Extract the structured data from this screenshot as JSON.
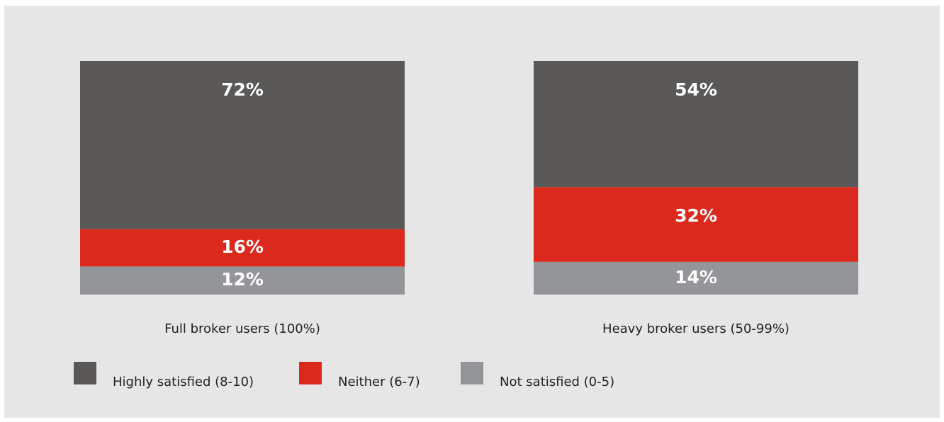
{
  "chart_data": {
    "type": "stacked_bar",
    "categories": [
      "Full broker users (100%)",
      "Heavy broker users (50-99%)"
    ],
    "series": [
      {
        "name": "Highly satisfied (8-10)",
        "color": "#595856",
        "values": [
          72,
          54
        ],
        "value_labels": [
          "72%",
          "54%"
        ]
      },
      {
        "name": "Neither (6-7)",
        "color": "#dc291e",
        "values": [
          16,
          32
        ],
        "value_labels": [
          "16%",
          "32%"
        ]
      },
      {
        "name": "Not satisfied (0-5)",
        "color": "#939598",
        "values": [
          12,
          14
        ],
        "value_labels": [
          "12%",
          "14%"
        ]
      }
    ],
    "ylim": [
      0,
      100
    ]
  }
}
